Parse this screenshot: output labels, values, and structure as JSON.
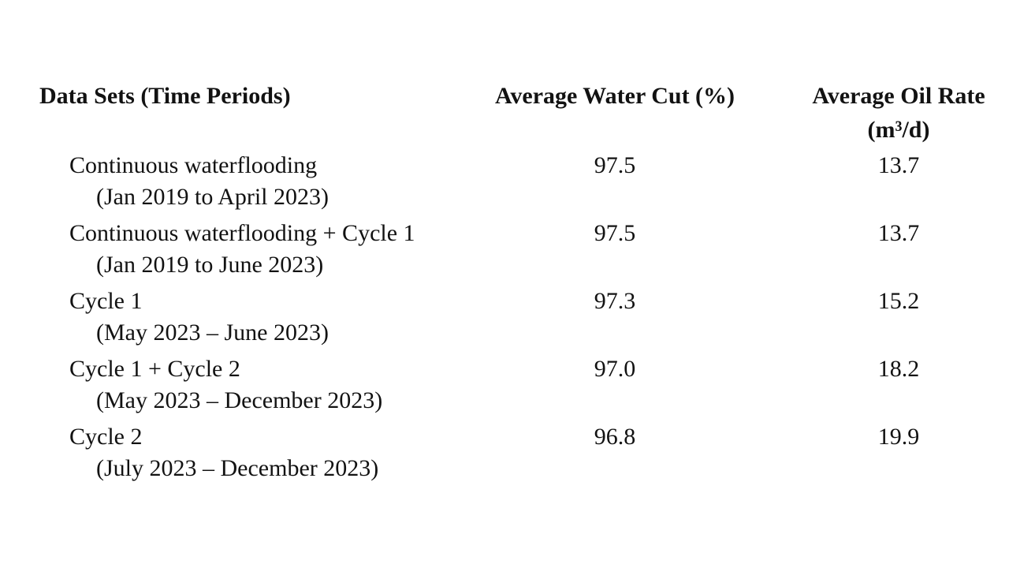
{
  "page": {
    "background_color": "#ffffff",
    "text_color": "#121212"
  },
  "table": {
    "header": {
      "col1": "Data Sets (Time Periods)",
      "col2": "Average Water Cut (%)",
      "col3_line1": "Average Oil Rate",
      "col3_line2": "(m³/d)"
    },
    "rows": [
      {
        "name": "Continuous waterflooding",
        "period": "(Jan 2019 to April 2023)",
        "water_cut": "97.5",
        "oil_rate": "13.7"
      },
      {
        "name": "Continuous waterflooding + Cycle 1",
        "period": "(Jan 2019 to June 2023)",
        "water_cut": "97.5",
        "oil_rate": "13.7"
      },
      {
        "name": "Cycle 1",
        "period": "(May 2023 – June 2023)",
        "water_cut": "97.3",
        "oil_rate": "15.2"
      },
      {
        "name": "Cycle 1 + Cycle 2",
        "period": "(May 2023 – December 2023)",
        "water_cut": "97.0",
        "oil_rate": "18.2"
      },
      {
        "name": "Cycle 2",
        "period": "(July 2023 – December 2023)",
        "water_cut": "96.8",
        "oil_rate": "19.9"
      }
    ]
  }
}
